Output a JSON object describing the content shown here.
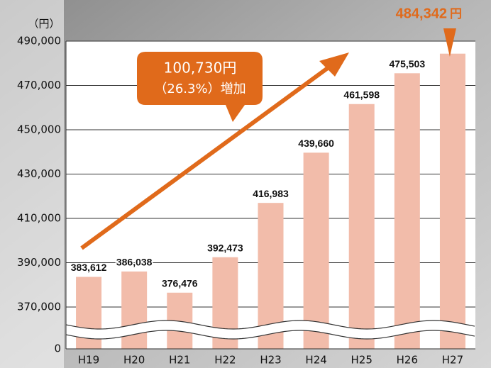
{
  "chart_data": {
    "type": "bar",
    "unit_label": "（円）",
    "categories": [
      "H19",
      "H20",
      "H21",
      "H22",
      "H23",
      "H24",
      "H25",
      "H26",
      "H27"
    ],
    "values": [
      383612,
      386038,
      376476,
      392473,
      416983,
      439660,
      461598,
      475503,
      484342
    ],
    "value_labels": [
      "383,612",
      "386,038",
      "376,476",
      "392,473",
      "416,983",
      "439,660",
      "461,598",
      "475,503",
      "484,342"
    ],
    "highlight_unit": "円",
    "color": "#f2bcaa",
    "highlight_color": "#e06a1b",
    "ylim": [
      0,
      490000
    ],
    "yticks": [
      {
        "value": 0,
        "label": "0"
      },
      {
        "value": 370000,
        "label": "370,000"
      },
      {
        "value": 390000,
        "label": "390,000"
      },
      {
        "value": 410000,
        "label": "410,000"
      },
      {
        "value": 430000,
        "label": "430,000"
      },
      {
        "value": 450000,
        "label": "450,000"
      },
      {
        "value": 470000,
        "label": "470,000"
      },
      {
        "value": 490000,
        "label": "490,000"
      }
    ],
    "axis_break": true,
    "grid": true,
    "annotations": [
      "100,730円",
      "（26.3%）増加"
    ]
  }
}
